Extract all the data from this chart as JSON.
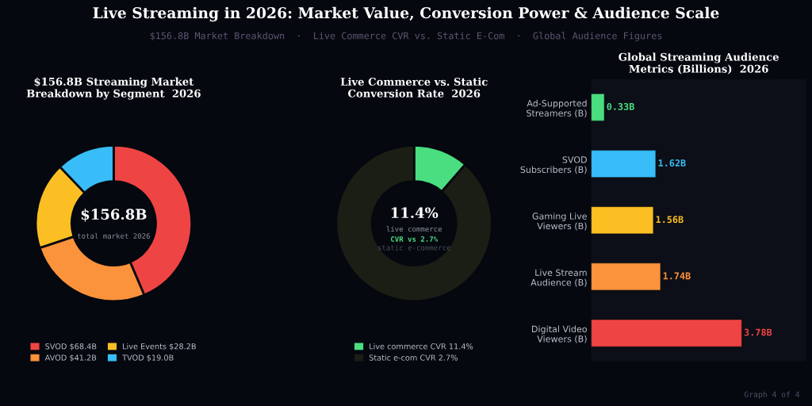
{
  "chart_data": [
    {
      "type": "other",
      "title": "Live Streaming in 2026: Market Value, Conversion Power & Audience Scale",
      "subtitle": "$156.8B Market Breakdown  ·  Live Commerce CVR vs. Static E-Com  ·  Global Audience Figures",
      "annotations": [
        "Graph 4 of 4"
      ]
    },
    {
      "type": "donut",
      "title": "$156.8B Streaming Market\nBreakdown by Segment  2026",
      "categories": [
        "SVOD $68.4B",
        "AVOD $41.2B",
        "Live Events $28.2B",
        "TVOD $19.0B"
      ],
      "values": [
        43.6,
        26.3,
        18.0,
        12.1
      ],
      "colors": [
        "#ef4444",
        "#fb923c",
        "#fbbf24",
        "#38bdf8"
      ],
      "annotations": [
        "$156.8B",
        "total market 2026"
      ],
      "legend": "bottom"
    },
    {
      "type": "donut",
      "title": "Live Commerce vs. Static\nConversion Rate  2026",
      "categories": [
        "Live commerce CVR 11.4%",
        "Static e-com CVR 2.7%"
      ],
      "values": [
        11.4,
        88.6
      ],
      "colors": [
        "#4ade80",
        "#1b1e14"
      ],
      "annotations": [
        "11.4%",
        "live commerce",
        "CVR vs 2.7%",
        "static e-commerce"
      ],
      "legend": "bottom"
    },
    {
      "type": "bar",
      "orientation": "horizontal",
      "title": "Global Streaming Audience\nMetrics (Billions)  2026",
      "categories": [
        "Ad-Supported\nStreamers (B)",
        "SVOD\nSubscribers (B)",
        "Gaming Live\nViewers (B)",
        "Live Stream\nAudience (B)",
        "Digital Video\nViewers (B)"
      ],
      "values": [
        0.33,
        1.62,
        1.56,
        1.74,
        3.78
      ],
      "colors": [
        "#4ade80",
        "#38bdf8",
        "#fbbf24",
        "#fb923c",
        "#ef4444"
      ],
      "value_labels": [
        "0.33B",
        "1.62B",
        "1.56B",
        "1.74B",
        "3.78B"
      ],
      "xlim": [
        0,
        5.4
      ],
      "tick_labels": "y"
    }
  ]
}
